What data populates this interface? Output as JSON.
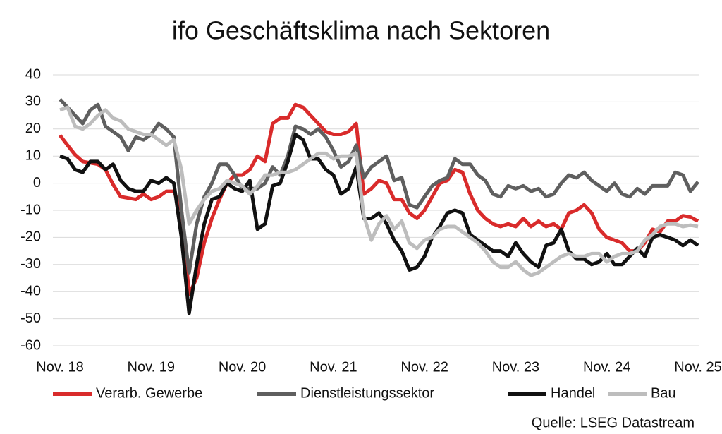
{
  "chart_data": {
    "type": "line",
    "title": "ifo Geschäftsklima nach Sektoren",
    "source": "Quelle: LSEG Datastream",
    "categories": [
      "Nov. 18",
      null,
      null,
      null,
      null,
      null,
      null,
      null,
      null,
      null,
      null,
      null,
      "Nov. 19",
      null,
      null,
      null,
      null,
      null,
      null,
      null,
      null,
      null,
      null,
      null,
      "Nov. 20",
      null,
      null,
      null,
      null,
      null,
      null,
      null,
      null,
      null,
      null,
      null,
      "Nov. 21",
      null,
      null,
      null,
      null,
      null,
      null,
      null,
      null,
      null,
      null,
      null,
      "Nov. 22",
      null,
      null,
      null,
      null,
      null,
      null,
      null,
      null,
      null,
      null,
      null,
      "Nov. 23",
      null,
      null,
      null,
      null,
      null,
      null,
      null,
      null,
      null,
      null,
      null,
      "Nov. 24",
      null,
      null,
      null,
      null,
      null,
      null,
      null,
      null,
      null,
      null,
      null,
      "Nov. 25"
    ],
    "series": [
      {
        "name": "Verarb. Gewerbe",
        "color": "#d92b2b",
        "values": [
          17.7,
          14,
          10.5,
          8,
          7.5,
          7,
          5,
          -0.5,
          -5,
          -5.5,
          -6,
          -4,
          -6,
          -5,
          -3,
          -3,
          -10,
          -41,
          -35,
          -22,
          -13,
          -6,
          0,
          3,
          3,
          5,
          10,
          8,
          22,
          24,
          24,
          29,
          28,
          25,
          22,
          19,
          18,
          18,
          19,
          22,
          -4,
          -2,
          1,
          0,
          -6,
          -6,
          -11,
          -13,
          -10,
          -5,
          0,
          1,
          5,
          4,
          -4,
          -10,
          -13,
          -15,
          -16,
          -15,
          -16,
          -13,
          -16,
          -14,
          -16,
          -15,
          -17,
          -11,
          -10,
          -8,
          -11,
          -17,
          -20,
          -21,
          -22,
          -25,
          -25,
          -22,
          -17,
          -18,
          -14,
          -14,
          -12,
          -12.5,
          -14
        ]
      },
      {
        "name": "Dienstleistungssektor",
        "color": "#5f5f5f",
        "values": [
          31,
          28,
          25,
          22,
          27,
          29,
          21,
          19,
          17,
          12,
          17,
          16,
          18,
          22,
          20,
          17,
          -10,
          -33,
          -15,
          -5,
          0,
          7,
          7,
          3,
          -2,
          -2,
          -2,
          0,
          6,
          3,
          10,
          21,
          20,
          18,
          20,
          17,
          12,
          6,
          8,
          14,
          2,
          6,
          8,
          10,
          1,
          2,
          -8,
          -9,
          -5,
          -1,
          1,
          2,
          9,
          7,
          7,
          3,
          1,
          -4,
          -5,
          -1,
          -2,
          -1,
          -3,
          -2,
          -5,
          -4,
          0,
          3,
          2,
          4,
          1,
          -1,
          -3,
          0,
          -4,
          -5,
          -2,
          -4,
          -1,
          -1,
          -1,
          4,
          3,
          -3,
          0.5
        ]
      },
      {
        "name": "Handel",
        "color": "#111111",
        "values": [
          10,
          9,
          5,
          4,
          8,
          8,
          5,
          7,
          1,
          -2,
          -3,
          -3,
          1,
          0,
          2,
          0,
          -20,
          -48,
          -30,
          -15,
          -6,
          -5,
          0,
          -2,
          -3,
          1,
          -17,
          -15,
          -1,
          0,
          8,
          18,
          16,
          9,
          9,
          5,
          3,
          -4,
          -2,
          6,
          -13,
          -13,
          -11,
          -15,
          -21,
          -25,
          -32,
          -31,
          -27,
          -20,
          -16,
          -11,
          -10,
          -11,
          -19,
          -21,
          -23,
          -25,
          -25,
          -27,
          -22,
          -26,
          -29,
          -31,
          -23,
          -22,
          -17,
          -25,
          -28,
          -28,
          -30,
          -29,
          -26,
          -30,
          -30,
          -27,
          -24,
          -27,
          -20,
          -19,
          -20,
          -21,
          -23,
          -21,
          -23
        ]
      },
      {
        "name": "Bau",
        "color": "#bdbdbd",
        "values": [
          27,
          28,
          21,
          20,
          22,
          25,
          27,
          24,
          23,
          20,
          19,
          18,
          18,
          16,
          14,
          16,
          5,
          -15,
          -10,
          -6,
          -3,
          -2,
          1,
          0,
          -1,
          -4,
          -1,
          3,
          3,
          4,
          4,
          5,
          7,
          9,
          11,
          11,
          9,
          10,
          10,
          11,
          -12,
          -21,
          -15,
          -12,
          -17,
          -14,
          -22,
          -24,
          -21,
          -20,
          -17,
          -16,
          -16,
          -18,
          -20,
          -22,
          -25,
          -29,
          -31,
          -31,
          -29,
          -32,
          -34,
          -33,
          -31,
          -29,
          -27,
          -26,
          -27,
          -27,
          -26,
          -26,
          -29,
          -27,
          -26,
          -26,
          -25,
          -21,
          -19,
          -16,
          -15,
          -15,
          -16,
          -15.5,
          -16
        ]
      }
    ],
    "ylim": [
      -60,
      40
    ],
    "yticks": [
      -60,
      -50,
      -40,
      -30,
      -20,
      -10,
      0,
      10,
      20,
      30,
      40
    ],
    "grid": true
  }
}
